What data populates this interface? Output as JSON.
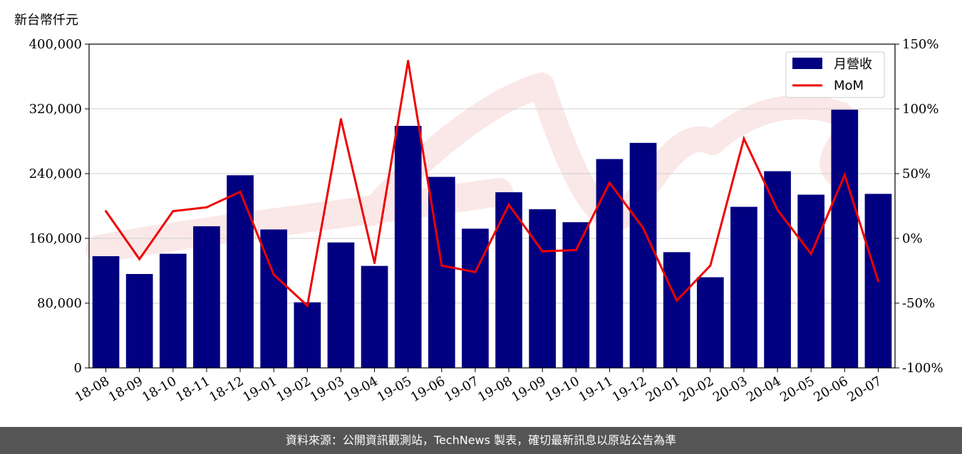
{
  "chart_data": {
    "type": "bar",
    "ylabel": "新台幣仟元",
    "categories": [
      "18-08",
      "18-09",
      "18-10",
      "18-11",
      "18-12",
      "19-01",
      "19-02",
      "19-03",
      "19-04",
      "19-05",
      "19-06",
      "19-07",
      "19-08",
      "19-09",
      "19-10",
      "19-11",
      "19-12",
      "20-01",
      "20-02",
      "20-03",
      "20-04",
      "20-05",
      "20-06",
      "20-07"
    ],
    "series": [
      {
        "name": "月營收",
        "type": "bar",
        "axis": "left",
        "color": "#000080",
        "values": [
          138000,
          116000,
          141000,
          175000,
          238000,
          171000,
          81000,
          155000,
          126000,
          299000,
          236000,
          172000,
          217000,
          196000,
          180000,
          258000,
          278000,
          143000,
          112000,
          199000,
          243000,
          214000,
          319000,
          215000
        ]
      },
      {
        "name": "MoM",
        "type": "line",
        "axis": "right",
        "unit": "%",
        "color": "#ee0000",
        "values": [
          21,
          -16,
          21,
          24,
          36,
          -28,
          -52,
          92,
          -19,
          137,
          -21,
          -26,
          26,
          -10,
          -9,
          43,
          8,
          -48,
          -21,
          77,
          22,
          -12,
          49,
          -33
        ]
      }
    ],
    "left_axis": {
      "ylim": [
        0,
        400000
      ],
      "ticks": [
        "0",
        "80,000",
        "160,000",
        "240,000",
        "320,000",
        "400,000"
      ]
    },
    "right_axis": {
      "ylim": [
        -100,
        150
      ],
      "ticks": [
        "-100%",
        "-50%",
        "0%",
        "50%",
        "100%",
        "150%"
      ]
    },
    "grid": "horizontal",
    "legend_position": "top-right"
  },
  "footer_text": "資料來源：公開資訊觀測站，TechNews 製表，確切最新訊息以原站公告為準"
}
